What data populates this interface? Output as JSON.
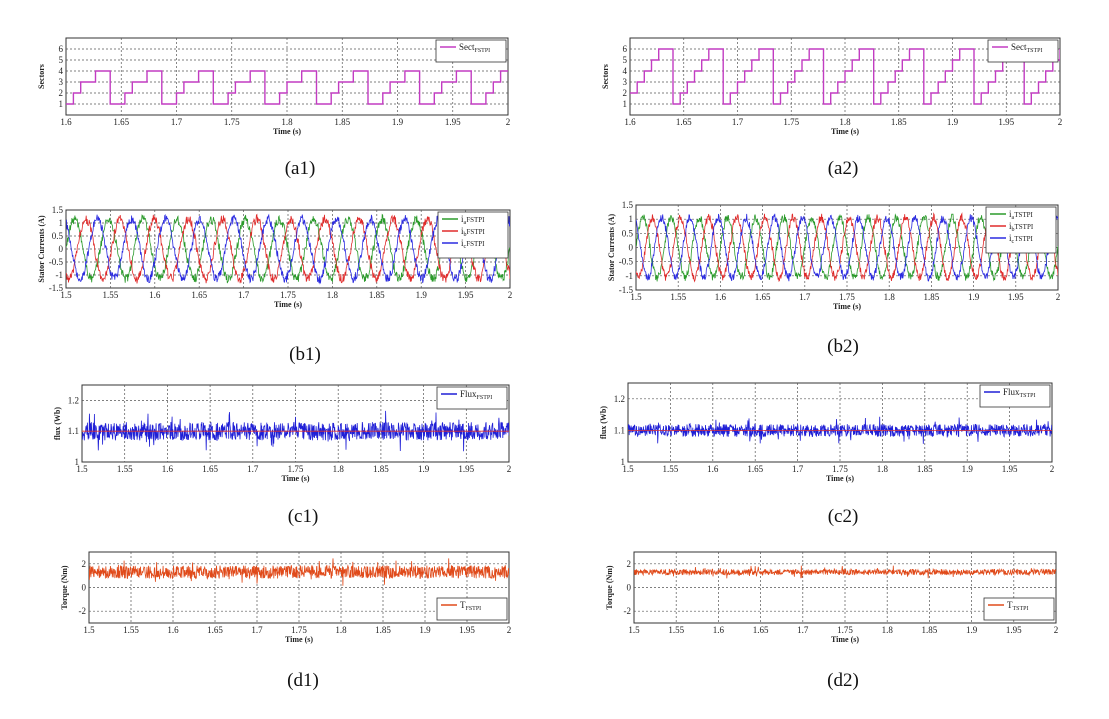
{
  "chart_data": [
    {
      "id": "a1",
      "type": "line",
      "caption": "(a1)",
      "xlabel": "Time (s)",
      "ylabel": "Sectors",
      "xlim": [
        1.6,
        2
      ],
      "ylim": [
        0,
        7
      ],
      "xticks": [
        "1.6",
        "1.65",
        "1.7",
        "1.75",
        "1.8",
        "1.85",
        "1.9",
        "1.95",
        "2"
      ],
      "yticks": [
        "1",
        "2",
        "3",
        "4",
        "5",
        "6"
      ],
      "grid": true,
      "legend_position": "top-right",
      "series": [
        {
          "name": "Sect",
          "name_sub": "FSTPI",
          "color": "#c23cc2",
          "kind": "step",
          "x": [
            1.6,
            1.6067,
            1.6133,
            1.62,
            1.6267,
            1.6333,
            1.64,
            1.6467,
            1.6533,
            1.66,
            1.6667,
            1.6733,
            1.68,
            1.6867,
            1.6933,
            1.7,
            1.7067,
            1.7133,
            1.72,
            1.7267,
            1.7333,
            1.74,
            1.7467,
            1.7533,
            1.76,
            1.7667,
            1.7733,
            1.78,
            1.7867,
            1.7933,
            1.8,
            1.8067,
            1.8133,
            1.82,
            1.8267,
            1.8333,
            1.84,
            1.8467,
            1.8533,
            1.86,
            1.8667,
            1.8733,
            1.88,
            1.8867,
            1.8933,
            1.9,
            1.9067,
            1.9133,
            1.92,
            1.9267,
            1.9333,
            1.94,
            1.9467,
            1.9533,
            1.96,
            1.9667,
            1.9733,
            1.98,
            1.9867,
            1.9933,
            2.0
          ],
          "values": [
            1,
            2,
            3,
            3,
            4,
            4,
            1,
            1,
            2,
            3,
            3,
            4,
            4,
            1,
            1,
            2,
            3,
            3,
            4,
            4,
            1,
            1,
            2,
            3,
            3,
            4,
            4,
            1,
            1,
            2,
            3,
            3,
            4,
            4,
            1,
            1,
            2,
            3,
            3,
            4,
            4,
            1,
            1,
            2,
            3,
            3,
            4,
            4,
            1,
            1,
            2,
            3,
            3,
            4,
            4,
            1,
            1,
            2,
            3,
            4,
            4
          ]
        }
      ]
    },
    {
      "id": "a2",
      "type": "line",
      "caption": "(a2)",
      "xlabel": "Time (s)",
      "ylabel": "Sectors",
      "xlim": [
        1.6,
        2
      ],
      "ylim": [
        0,
        7
      ],
      "xticks": [
        "1.6",
        "1.65",
        "1.7",
        "1.75",
        "1.8",
        "1.85",
        "1.9",
        "1.95",
        "2"
      ],
      "yticks": [
        "1",
        "2",
        "3",
        "4",
        "5",
        "6"
      ],
      "grid": true,
      "legend_position": "top-right",
      "series": [
        {
          "name": "Sect",
          "name_sub": "TSTPI",
          "color": "#c23cc2",
          "kind": "step",
          "x": [
            1.6,
            1.6067,
            1.6133,
            1.62,
            1.6267,
            1.6333,
            1.64,
            1.6467,
            1.6533,
            1.66,
            1.6667,
            1.6733,
            1.68,
            1.6867,
            1.6933,
            1.7,
            1.7067,
            1.7133,
            1.72,
            1.7267,
            1.7333,
            1.74,
            1.7467,
            1.7533,
            1.76,
            1.7667,
            1.7733,
            1.78,
            1.7867,
            1.7933,
            1.8,
            1.8067,
            1.8133,
            1.82,
            1.8267,
            1.8333,
            1.84,
            1.8467,
            1.8533,
            1.86,
            1.8667,
            1.8733,
            1.88,
            1.8867,
            1.8933,
            1.9,
            1.9067,
            1.9133,
            1.92,
            1.9267,
            1.9333,
            1.94,
            1.9467,
            1.9533,
            1.96,
            1.9667,
            1.9733,
            1.98,
            1.9867,
            1.9933,
            2.0
          ],
          "values": [
            2,
            3,
            4,
            5,
            6,
            6,
            1,
            2,
            3,
            4,
            5,
            6,
            6,
            1,
            2,
            3,
            4,
            5,
            6,
            6,
            1,
            2,
            3,
            4,
            5,
            6,
            6,
            1,
            2,
            3,
            4,
            5,
            6,
            6,
            1,
            2,
            3,
            4,
            5,
            6,
            6,
            1,
            2,
            3,
            4,
            5,
            6,
            6,
            1,
            2,
            3,
            4,
            5,
            6,
            6,
            1,
            2,
            3,
            4,
            5,
            6
          ]
        }
      ]
    },
    {
      "id": "b1",
      "type": "line",
      "caption": "(b1)",
      "xlabel": "Time (s)",
      "ylabel": "Stator Currents (A)",
      "xlim": [
        1.5,
        2
      ],
      "ylim": [
        -1.5,
        1.5
      ],
      "xticks": [
        "1.5",
        "1.55",
        "1.6",
        "1.65",
        "1.7",
        "1.75",
        "1.8",
        "1.85",
        "1.9",
        "1.95",
        "2"
      ],
      "yticks": [
        "1.5",
        "1",
        "0.5",
        "0",
        "-0.5",
        "-1",
        "-1.5"
      ],
      "grid": true,
      "legend_position": "top-right",
      "series": [
        {
          "name": "i",
          "name_sub": "a",
          "name_suffix": "FSTPI",
          "color": "#2a9a2a",
          "kind": "sine",
          "amplitude": 1.15,
          "frequency_hz": 26,
          "phase_deg": 0,
          "noise": 0.18
        },
        {
          "name": "i",
          "name_sub": "b",
          "name_suffix": "FSTPI",
          "color": "#e02a2a",
          "kind": "sine",
          "amplitude": 1.15,
          "frequency_hz": 26,
          "phase_deg": -120,
          "noise": 0.18
        },
        {
          "name": "i",
          "name_sub": "c",
          "name_suffix": "FSTPI",
          "color": "#2a2ae0",
          "kind": "sine",
          "amplitude": 1.15,
          "frequency_hz": 26,
          "phase_deg": 120,
          "noise": 0.18
        }
      ]
    },
    {
      "id": "b2",
      "type": "line",
      "caption": "(b2)",
      "xlabel": "Time (s)",
      "ylabel": "Stator Currents (A)",
      "xlim": [
        1.5,
        2
      ],
      "ylim": [
        -1.5,
        1.5
      ],
      "xticks": [
        "1.5",
        "1.55",
        "1.6",
        "1.65",
        "1.7",
        "1.75",
        "1.8",
        "1.85",
        "1.9",
        "1.95",
        "2"
      ],
      "yticks": [
        "1.5",
        "1",
        "0.5",
        "0",
        "-0.5",
        "-1",
        "-1.5"
      ],
      "grid": true,
      "legend_position": "top-right",
      "series": [
        {
          "name": "i",
          "name_sub": "a",
          "name_suffix": "TSTPI",
          "color": "#2a9a2a",
          "kind": "sine",
          "amplitude": 1.05,
          "frequency_hz": 30,
          "phase_deg": 0,
          "noise": 0.15
        },
        {
          "name": "i",
          "name_sub": "b",
          "name_suffix": "TSTPI",
          "color": "#e02a2a",
          "kind": "sine",
          "amplitude": 1.05,
          "frequency_hz": 30,
          "phase_deg": -120,
          "noise": 0.15
        },
        {
          "name": "i",
          "name_sub": "c",
          "name_suffix": "TSTPI",
          "color": "#2a2ae0",
          "kind": "sine",
          "amplitude": 1.05,
          "frequency_hz": 30,
          "phase_deg": 120,
          "noise": 0.15
        }
      ]
    },
    {
      "id": "c1",
      "type": "line",
      "caption": "(c1)",
      "xlabel": "Time (s)",
      "ylabel": "flux (Wb)",
      "xlim": [
        1.5,
        2
      ],
      "ylim": [
        1,
        1.25
      ],
      "xticks": [
        "1.5",
        "1.55",
        "1.6",
        "1.65",
        "1.7",
        "1.75",
        "1.8",
        "1.85",
        "1.9",
        "1.95",
        "2"
      ],
      "yticks": [
        "1.2",
        "1.1",
        "1"
      ],
      "grid": true,
      "legend_position": "top-right",
      "series": [
        {
          "name": "Flux",
          "name_sub": "FSTPI",
          "color": "#1f1fd6",
          "kind": "noise",
          "mean": 1.1,
          "spread": 0.03
        },
        {
          "name": "",
          "color": "#e03030",
          "kind": "constant",
          "value": 1.1
        }
      ]
    },
    {
      "id": "c2",
      "type": "line",
      "caption": "(c2)",
      "xlabel": "Time (s)",
      "ylabel": "flux (Wb)",
      "xlim": [
        1.5,
        2
      ],
      "ylim": [
        1,
        1.25
      ],
      "xticks": [
        "1.5",
        "1.55",
        "1.6",
        "1.65",
        "1.7",
        "1.75",
        "1.8",
        "1.85",
        "1.9",
        "1.95",
        "2"
      ],
      "yticks": [
        "1.2",
        "1.1",
        "1"
      ],
      "grid": true,
      "legend_position": "top-right",
      "series": [
        {
          "name": "Flux",
          "name_sub": "TSTPI",
          "color": "#1f1fd6",
          "kind": "noise",
          "mean": 1.1,
          "spread": 0.02
        },
        {
          "name": "",
          "color": "#e03030",
          "kind": "constant",
          "value": 1.1
        }
      ]
    },
    {
      "id": "d1",
      "type": "line",
      "caption": "(d1)",
      "xlabel": "Time (s)",
      "ylabel": "Torque (Nm)",
      "xlim": [
        1.5,
        2
      ],
      "ylim": [
        -3,
        3
      ],
      "xticks": [
        "1.5",
        "1.55",
        "1.6",
        "1.65",
        "1.7",
        "1.75",
        "1.8",
        "1.85",
        "1.9",
        "1.95",
        "2"
      ],
      "yticks": [
        "2",
        "0",
        "-2"
      ],
      "grid": true,
      "legend_position": "bottom-right",
      "series": [
        {
          "name": "T",
          "name_sub": "FSTPI",
          "color": "#e04a1a",
          "kind": "noise",
          "mean": 1.3,
          "spread": 0.55
        }
      ]
    },
    {
      "id": "d2",
      "type": "line",
      "caption": "(d2)",
      "xlabel": "Time (s)",
      "ylabel": "Torque (Nm)",
      "xlim": [
        1.5,
        2
      ],
      "ylim": [
        -3,
        3
      ],
      "xticks": [
        "1.5",
        "1.55",
        "1.6",
        "1.65",
        "1.7",
        "1.75",
        "1.8",
        "1.85",
        "1.9",
        "1.95",
        "2"
      ],
      "yticks": [
        "2",
        "0",
        "-2"
      ],
      "grid": true,
      "legend_position": "bottom-right",
      "series": [
        {
          "name": "T",
          "name_sub": "TSTPI",
          "color": "#e04a1a",
          "kind": "noise",
          "mean": 1.3,
          "spread": 0.25
        }
      ]
    }
  ]
}
